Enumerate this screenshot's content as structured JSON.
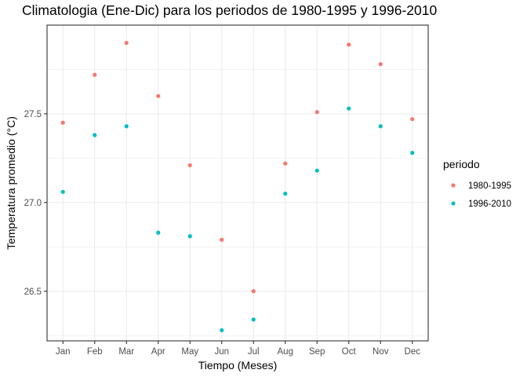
{
  "chart_data": {
    "type": "scatter",
    "title": "Climatologia (Ene-Dic) para los periodos de 1980-1995 y 1996-2010",
    "xlabel": "Tiempo (Meses)",
    "ylabel": "Temperatura promedio (°C)",
    "categories": [
      "Jan",
      "Feb",
      "Mar",
      "Apr",
      "May",
      "Jun",
      "Jul",
      "Aug",
      "Sep",
      "Oct",
      "Nov",
      "Dec"
    ],
    "yticks": [
      26.5,
      27.0,
      27.5
    ],
    "ytick_labels": [
      "26.5",
      "27.0",
      "27.5"
    ],
    "ylim": [
      26.22,
      28.0
    ],
    "grid": true,
    "legend": {
      "title": "periodo",
      "placement": "right"
    },
    "series": [
      {
        "name": "1980-1995",
        "color": "#F8766D",
        "values": [
          27.45,
          27.72,
          27.9,
          27.6,
          27.21,
          26.79,
          26.5,
          27.22,
          27.51,
          27.89,
          27.78,
          27.47
        ]
      },
      {
        "name": "1996-2010",
        "color": "#00BFC4",
        "values": [
          27.06,
          27.38,
          27.43,
          26.83,
          26.81,
          26.28,
          26.34,
          27.05,
          27.18,
          27.53,
          27.43,
          27.28
        ]
      }
    ]
  }
}
